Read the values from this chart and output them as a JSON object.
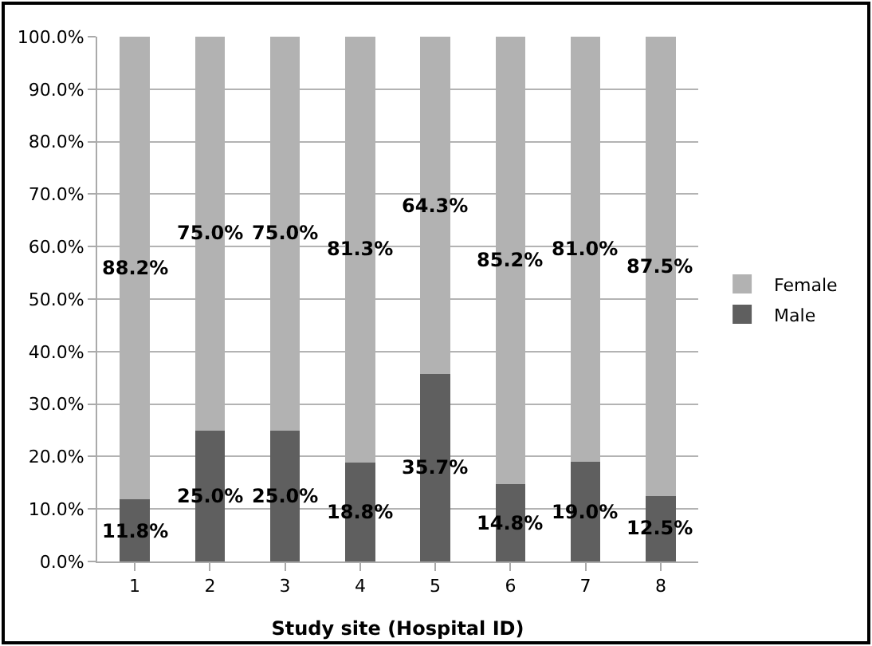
{
  "chart_data": {
    "type": "bar",
    "stacked": true,
    "xlabel": "Study site (Hospital ID)",
    "categories": [
      "1",
      "2",
      "3",
      "4",
      "5",
      "6",
      "7",
      "8"
    ],
    "series": [
      {
        "name": "Male",
        "color": "#5f5f5f",
        "values": [
          11.8,
          25.0,
          25.0,
          18.8,
          35.7,
          14.8,
          19.0,
          12.5
        ],
        "value_labels": [
          "11.8%",
          "25.0%",
          "25.0%",
          "18.8%",
          "35.7%",
          "14.8%",
          "19.0%",
          "12.5%"
        ]
      },
      {
        "name": "Female",
        "color": "#b2b2b2",
        "values": [
          88.2,
          75.0,
          75.0,
          81.3,
          64.3,
          85.2,
          81.0,
          87.5
        ],
        "value_labels": [
          "88.2%",
          "75.0%",
          "75.0%",
          "81.3%",
          "64.3%",
          "85.2%",
          "81.0%",
          "87.5%"
        ]
      }
    ],
    "ylim": [
      0,
      100
    ],
    "yticks": [
      {
        "value": 0,
        "label": "0.0%"
      },
      {
        "value": 10,
        "label": "10.0%"
      },
      {
        "value": 20,
        "label": "20.0%"
      },
      {
        "value": 30,
        "label": "30.0%"
      },
      {
        "value": 40,
        "label": "40.0%"
      },
      {
        "value": 50,
        "label": "50.0%"
      },
      {
        "value": 60,
        "label": "60.0%"
      },
      {
        "value": 70,
        "label": "70.0%"
      },
      {
        "value": 80,
        "label": "80.0%"
      },
      {
        "value": 90,
        "label": "90.0%"
      },
      {
        "value": 100,
        "label": "100.0%"
      }
    ],
    "grid": "y",
    "legend": "right"
  }
}
